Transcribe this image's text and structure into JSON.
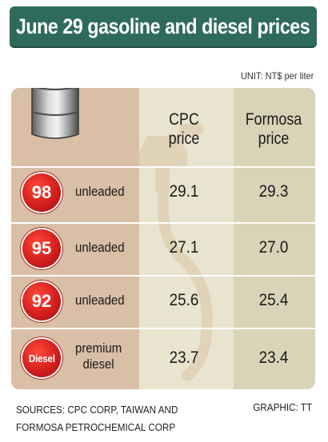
{
  "title": "June 29 gasoline and diesel prices",
  "unit": "UNIT: NT$ per liter",
  "headers": {
    "cpc_line1": "CPC",
    "cpc_line2": "price",
    "formosa_line1": "Formosa",
    "formosa_line2": "price"
  },
  "rows": [
    {
      "badge": "98",
      "label_line1": "unleaded",
      "label_line2": "",
      "cpc": "29.1",
      "formosa": "29.3"
    },
    {
      "badge": "95",
      "label_line1": "unleaded",
      "label_line2": "",
      "cpc": "27.1",
      "formosa": "27.0"
    },
    {
      "badge": "92",
      "label_line1": "unleaded",
      "label_line2": "",
      "cpc": "25.6",
      "formosa": "25.4"
    },
    {
      "badge": "Diesel",
      "label_line1": "premium",
      "label_line2": "diesel",
      "cpc": "23.7",
      "formosa": "23.4"
    }
  ],
  "sources_line1": "SOURCES: CPC CORP, TAIWAN AND",
  "sources_line2": "FORMOSA PETROCHEMICAL CORP",
  "credit": "GRAPHIC: TT",
  "colors": {
    "title_bg": "#2e6b5c",
    "panel_bg": "#e9e4cf",
    "left_column_bg": "#d8bfa6",
    "formosa_column_bg": "#d9d3b7",
    "badge_red": "#d41e1e"
  },
  "icons": [
    "oil-barrel-icon",
    "fuel-nozzle-icon"
  ]
}
